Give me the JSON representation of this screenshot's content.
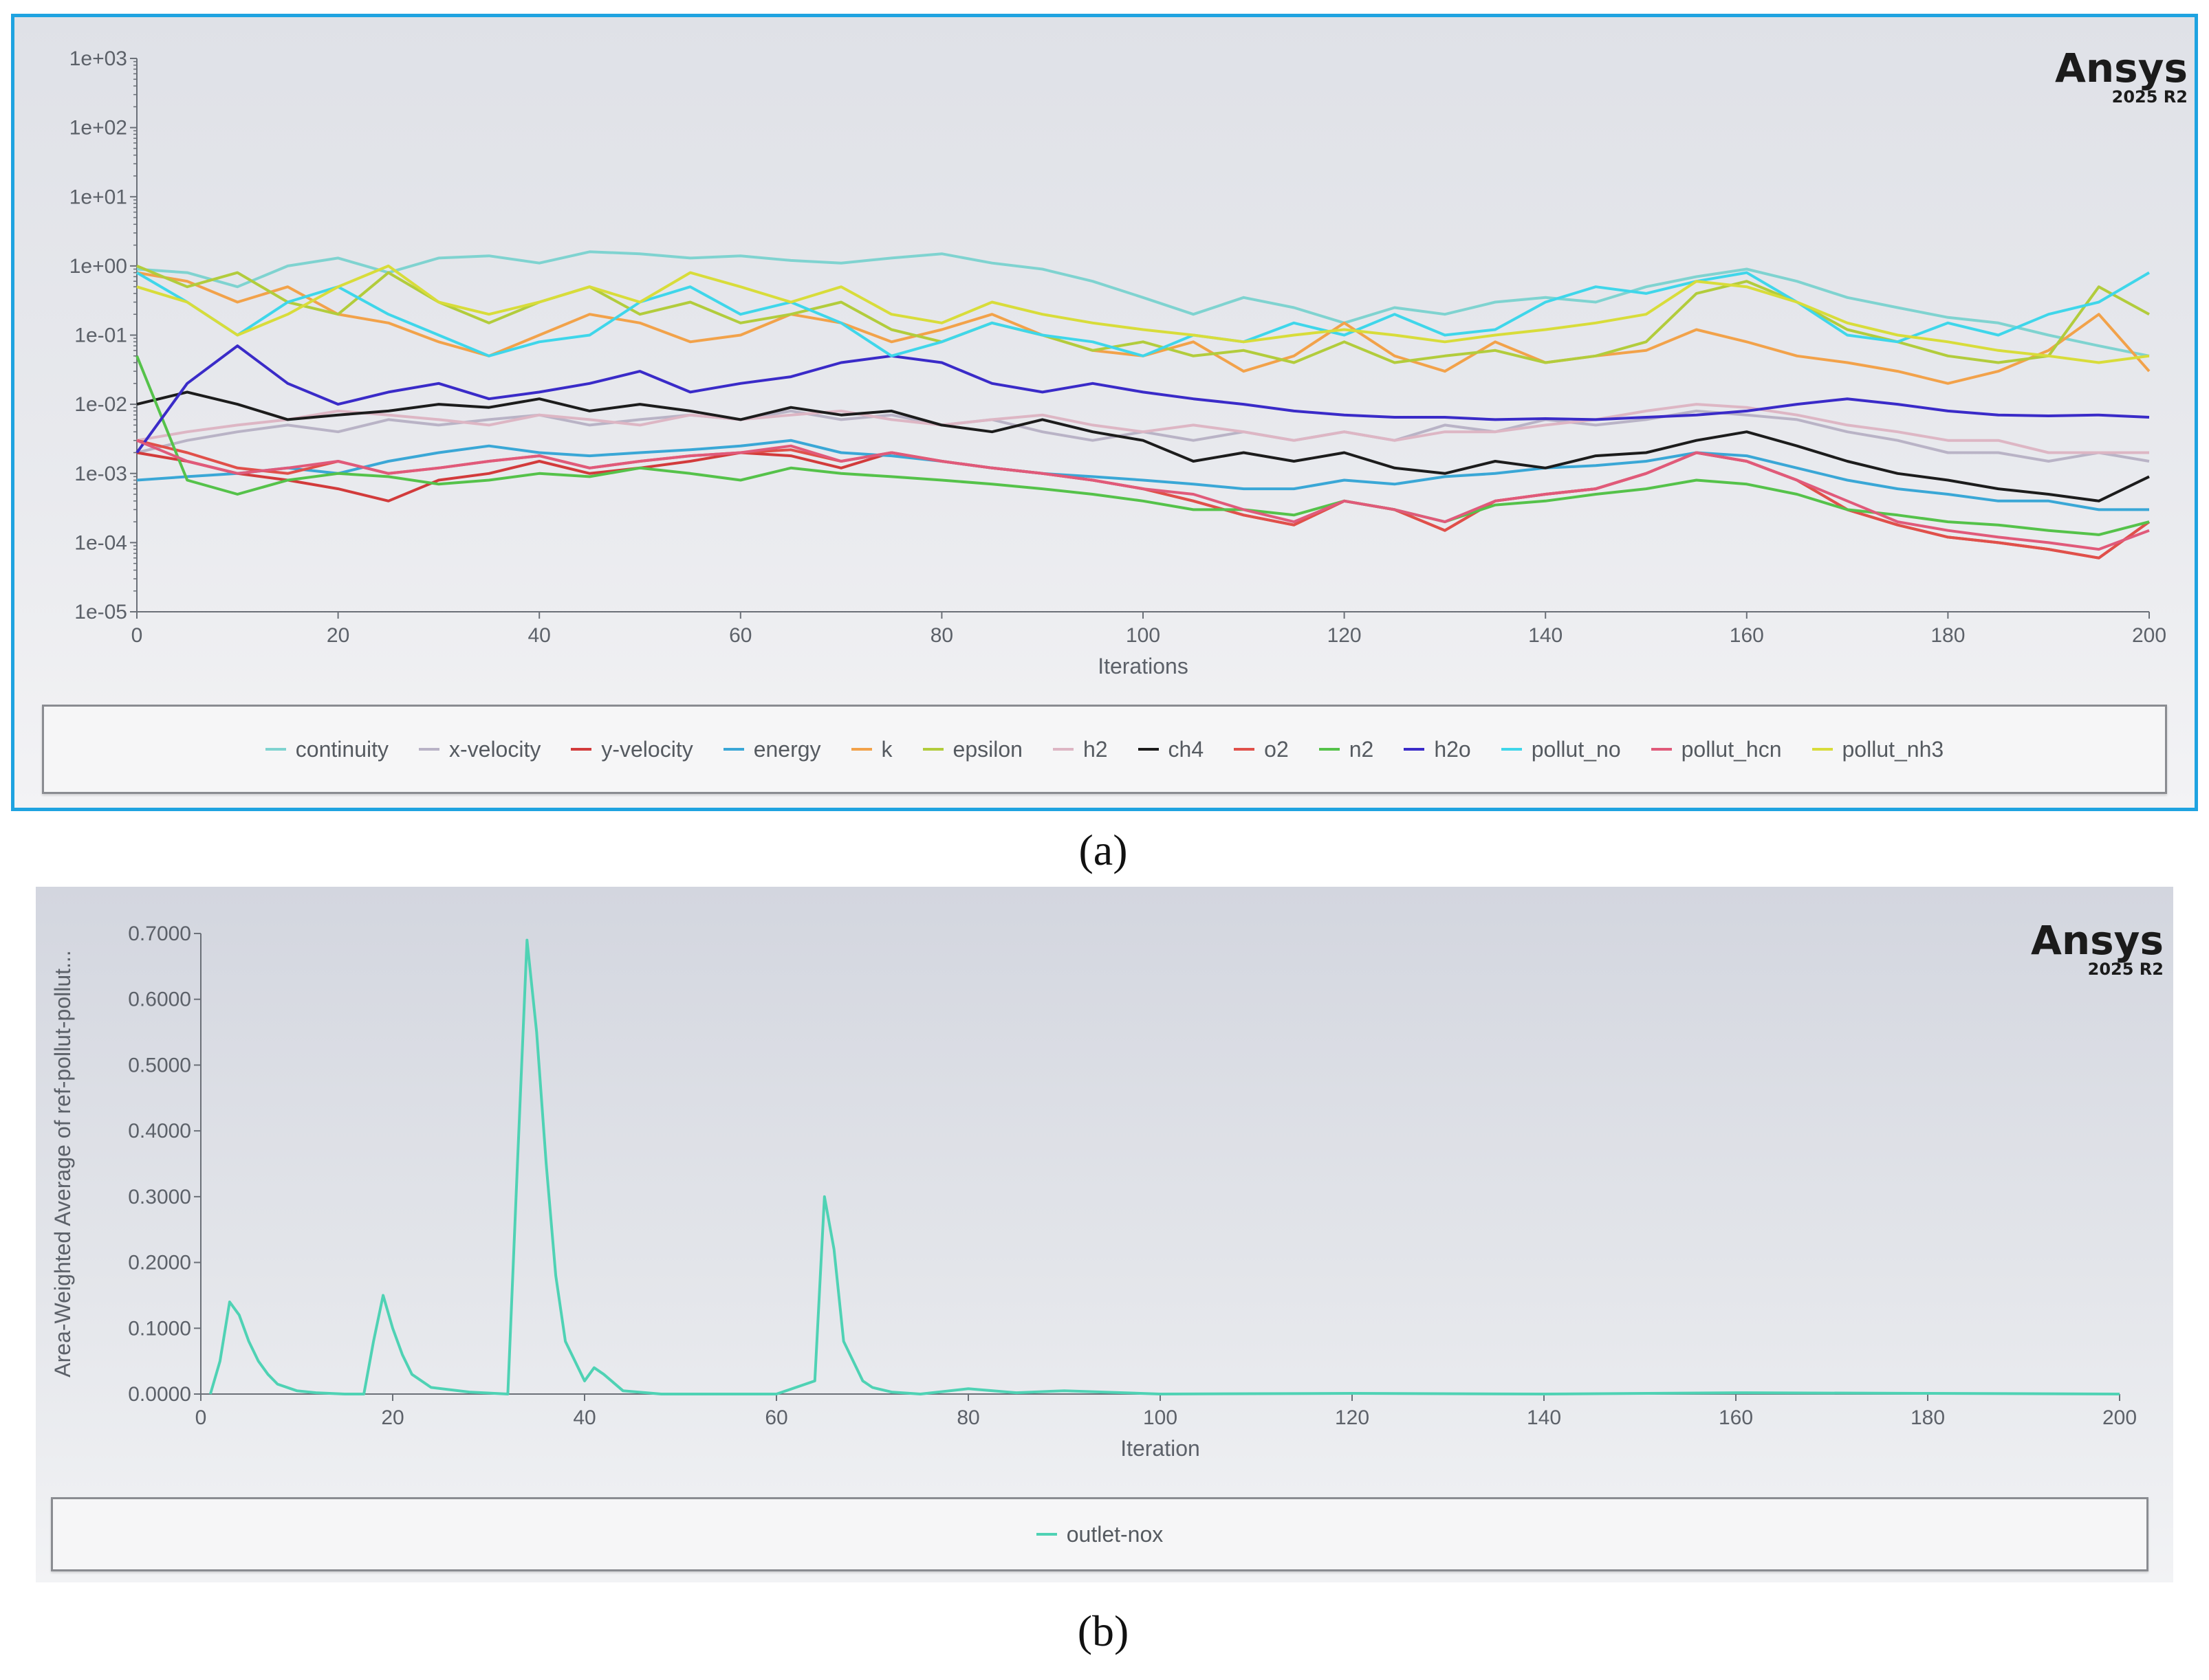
{
  "brand": {
    "name": "Ansys",
    "version": "2025 R2"
  },
  "captions": {
    "a": "(a)",
    "b": "(b)"
  },
  "chart_data": [
    {
      "type": "line",
      "yscale": "log",
      "xlabel": "Iterations",
      "ylabel": "",
      "xlim": [
        0,
        200
      ],
      "ylim": [
        1e-05,
        1000
      ],
      "xticks": [
        "0",
        "20",
        "40",
        "60",
        "80",
        "100",
        "120",
        "140",
        "160",
        "180",
        "200"
      ],
      "yticks": [
        "1e-05",
        "1e-04",
        "1e-03",
        "1e-02",
        "1e-01",
        "1e+00",
        "1e+01",
        "1e+02",
        "1e+03"
      ],
      "legend_position": "bottom",
      "x": [
        0,
        5,
        10,
        15,
        20,
        25,
        30,
        35,
        40,
        45,
        50,
        55,
        60,
        65,
        70,
        75,
        80,
        85,
        90,
        95,
        100,
        105,
        110,
        115,
        120,
        125,
        130,
        135,
        140,
        145,
        150,
        155,
        160,
        165,
        170,
        175,
        180,
        185,
        190,
        195,
        200
      ],
      "series": [
        {
          "name": "continuity",
          "color": "#7fd3d0",
          "values": [
            0.9,
            0.8,
            0.5,
            1.0,
            1.3,
            0.8,
            1.3,
            1.4,
            1.1,
            1.6,
            1.5,
            1.3,
            1.4,
            1.2,
            1.1,
            1.3,
            1.5,
            1.1,
            0.9,
            0.6,
            0.35,
            0.2,
            0.35,
            0.25,
            0.15,
            0.25,
            0.2,
            0.3,
            0.35,
            0.3,
            0.5,
            0.7,
            0.9,
            0.6,
            0.35,
            0.25,
            0.18,
            0.15,
            0.1,
            0.07,
            0.05
          ]
        },
        {
          "name": "x-velocity",
          "color": "#b9b3c6",
          "values": [
            0.002,
            0.003,
            0.004,
            0.005,
            0.004,
            0.006,
            0.005,
            0.006,
            0.007,
            0.005,
            0.006,
            0.007,
            0.006,
            0.008,
            0.006,
            0.007,
            0.005,
            0.006,
            0.004,
            0.003,
            0.004,
            0.003,
            0.004,
            0.003,
            0.004,
            0.003,
            0.005,
            0.004,
            0.006,
            0.005,
            0.006,
            0.008,
            0.007,
            0.006,
            0.004,
            0.003,
            0.002,
            0.002,
            0.0015,
            0.002,
            0.0015
          ]
        },
        {
          "name": "y-velocity",
          "color": "#d23b3b",
          "values": [
            0.002,
            0.0015,
            0.001,
            0.0008,
            0.0006,
            0.0004,
            0.0008,
            0.001,
            0.0015,
            0.001,
            0.0012,
            0.0015,
            0.002,
            0.0018,
            0.0012,
            0.002,
            0.0015,
            0.0012,
            0.001,
            0.0008,
            0.0006,
            0.0004,
            0.00025,
            0.00018,
            0.0004,
            0.0003,
            0.00015,
            0.0004,
            0.0005,
            0.0006,
            0.001,
            0.002,
            0.0015,
            0.0008,
            0.0003,
            0.00018,
            0.00012,
            0.0001,
            8e-05,
            6e-05,
            0.0002
          ]
        },
        {
          "name": "energy",
          "color": "#3aa7d6",
          "values": [
            0.0008,
            0.0009,
            0.001,
            0.0012,
            0.001,
            0.0015,
            0.002,
            0.0025,
            0.002,
            0.0018,
            0.002,
            0.0022,
            0.0025,
            0.003,
            0.002,
            0.0018,
            0.0015,
            0.0012,
            0.001,
            0.0009,
            0.0008,
            0.0007,
            0.0006,
            0.0006,
            0.0008,
            0.0007,
            0.0009,
            0.001,
            0.0012,
            0.0013,
            0.0015,
            0.002,
            0.0018,
            0.0012,
            0.0008,
            0.0006,
            0.0005,
            0.0004,
            0.0004,
            0.0003,
            0.0003
          ]
        },
        {
          "name": "k",
          "color": "#f2a24a",
          "values": [
            0.8,
            0.6,
            0.3,
            0.5,
            0.2,
            0.15,
            0.08,
            0.05,
            0.1,
            0.2,
            0.15,
            0.08,
            0.1,
            0.2,
            0.15,
            0.08,
            0.12,
            0.2,
            0.1,
            0.06,
            0.05,
            0.08,
            0.03,
            0.05,
            0.15,
            0.05,
            0.03,
            0.08,
            0.04,
            0.05,
            0.06,
            0.12,
            0.08,
            0.05,
            0.04,
            0.03,
            0.02,
            0.03,
            0.06,
            0.2,
            0.03
          ]
        },
        {
          "name": "epsilon",
          "color": "#b2cc3c",
          "values": [
            1.0,
            0.5,
            0.8,
            0.3,
            0.2,
            0.8,
            0.3,
            0.15,
            0.3,
            0.5,
            0.2,
            0.3,
            0.15,
            0.2,
            0.3,
            0.12,
            0.08,
            0.15,
            0.1,
            0.06,
            0.08,
            0.05,
            0.06,
            0.04,
            0.08,
            0.04,
            0.05,
            0.06,
            0.04,
            0.05,
            0.08,
            0.4,
            0.6,
            0.3,
            0.12,
            0.08,
            0.05,
            0.04,
            0.05,
            0.5,
            0.2
          ]
        },
        {
          "name": "h2",
          "color": "#ddb6c4",
          "values": [
            0.003,
            0.004,
            0.005,
            0.006,
            0.008,
            0.007,
            0.006,
            0.005,
            0.007,
            0.006,
            0.005,
            0.007,
            0.006,
            0.007,
            0.008,
            0.006,
            0.005,
            0.006,
            0.007,
            0.005,
            0.004,
            0.005,
            0.004,
            0.003,
            0.004,
            0.003,
            0.004,
            0.004,
            0.005,
            0.006,
            0.008,
            0.01,
            0.009,
            0.007,
            0.005,
            0.004,
            0.003,
            0.003,
            0.002,
            0.002,
            0.002
          ]
        },
        {
          "name": "ch4",
          "color": "#1c1c1c",
          "values": [
            0.01,
            0.015,
            0.01,
            0.006,
            0.007,
            0.008,
            0.01,
            0.009,
            0.012,
            0.008,
            0.01,
            0.008,
            0.006,
            0.009,
            0.007,
            0.008,
            0.005,
            0.004,
            0.006,
            0.004,
            0.003,
            0.0015,
            0.002,
            0.0015,
            0.002,
            0.0012,
            0.001,
            0.0015,
            0.0012,
            0.0018,
            0.002,
            0.003,
            0.004,
            0.0025,
            0.0015,
            0.001,
            0.0008,
            0.0006,
            0.0005,
            0.0004,
            0.0009
          ]
        },
        {
          "name": "o2",
          "color": "#e0504a",
          "values": [
            0.003,
            0.002,
            0.0012,
            0.001,
            0.0015,
            0.001,
            0.0012,
            0.0015,
            0.0018,
            0.0012,
            0.0015,
            0.0018,
            0.002,
            0.0022,
            0.0015,
            0.002,
            0.0015,
            0.0012,
            0.001,
            0.0008,
            0.0006,
            0.0004,
            0.00025,
            0.00018,
            0.0004,
            0.0003,
            0.00015,
            0.0004,
            0.0005,
            0.0006,
            0.001,
            0.002,
            0.0015,
            0.0008,
            0.0003,
            0.00018,
            0.00012,
            0.0001,
            8e-05,
            6e-05,
            0.0002
          ]
        },
        {
          "name": "n2",
          "color": "#55c24a",
          "values": [
            0.05,
            0.0008,
            0.0005,
            0.0008,
            0.001,
            0.0009,
            0.0007,
            0.0008,
            0.001,
            0.0009,
            0.0012,
            0.001,
            0.0008,
            0.0012,
            0.001,
            0.0009,
            0.0008,
            0.0007,
            0.0006,
            0.0005,
            0.0004,
            0.0003,
            0.0003,
            0.00025,
            0.0004,
            0.0003,
            0.0002,
            0.00035,
            0.0004,
            0.0005,
            0.0006,
            0.0008,
            0.0007,
            0.0005,
            0.0003,
            0.00025,
            0.0002,
            0.00018,
            0.00015,
            0.00013,
            0.0002
          ]
        },
        {
          "name": "h2o",
          "color": "#3a2bc8",
          "values": [
            0.002,
            0.02,
            0.07,
            0.02,
            0.01,
            0.015,
            0.02,
            0.012,
            0.015,
            0.02,
            0.03,
            0.015,
            0.02,
            0.025,
            0.04,
            0.05,
            0.04,
            0.02,
            0.015,
            0.02,
            0.015,
            0.012,
            0.01,
            0.008,
            0.007,
            0.0065,
            0.0065,
            0.006,
            0.0062,
            0.006,
            0.0065,
            0.007,
            0.008,
            0.01,
            0.012,
            0.01,
            0.008,
            0.007,
            0.0068,
            0.007,
            0.0065
          ]
        },
        {
          "name": "pollut_no",
          "color": "#3fd6ea",
          "values": [
            0.8,
            0.3,
            0.1,
            0.3,
            0.5,
            0.2,
            0.1,
            0.05,
            0.08,
            0.1,
            0.3,
            0.5,
            0.2,
            0.3,
            0.15,
            0.05,
            0.08,
            0.15,
            0.1,
            0.08,
            0.05,
            0.1,
            0.08,
            0.15,
            0.1,
            0.2,
            0.1,
            0.12,
            0.3,
            0.5,
            0.4,
            0.6,
            0.8,
            0.3,
            0.1,
            0.08,
            0.15,
            0.1,
            0.2,
            0.3,
            0.8
          ]
        },
        {
          "name": "pollut_hcn",
          "color": "#e05a7a",
          "values": [
            0.003,
            0.0015,
            0.001,
            0.0012,
            0.0015,
            0.001,
            0.0012,
            0.0015,
            0.0018,
            0.0012,
            0.0015,
            0.0018,
            0.002,
            0.0025,
            0.0015,
            0.002,
            0.0015,
            0.0012,
            0.001,
            0.0008,
            0.0006,
            0.0005,
            0.0003,
            0.0002,
            0.0004,
            0.0003,
            0.0002,
            0.0004,
            0.0005,
            0.0006,
            0.001,
            0.002,
            0.0015,
            0.0008,
            0.0004,
            0.0002,
            0.00015,
            0.00012,
            0.0001,
            8e-05,
            0.00015
          ]
        },
        {
          "name": "pollut_nh3",
          "color": "#d8dc3a",
          "values": [
            0.5,
            0.3,
            0.1,
            0.2,
            0.5,
            1.0,
            0.3,
            0.2,
            0.3,
            0.5,
            0.3,
            0.8,
            0.5,
            0.3,
            0.5,
            0.2,
            0.15,
            0.3,
            0.2,
            0.15,
            0.12,
            0.1,
            0.08,
            0.1,
            0.12,
            0.1,
            0.08,
            0.1,
            0.12,
            0.15,
            0.2,
            0.6,
            0.5,
            0.3,
            0.15,
            0.1,
            0.08,
            0.06,
            0.05,
            0.04,
            0.05
          ]
        }
      ]
    },
    {
      "type": "line",
      "xlabel": "Iteration",
      "ylabel": "Area-Weighted Average of ref-pollut-pollut...",
      "xlim": [
        0,
        200
      ],
      "ylim": [
        0,
        0.7
      ],
      "xticks": [
        "0",
        "20",
        "40",
        "60",
        "80",
        "100",
        "120",
        "140",
        "160",
        "180",
        "200"
      ],
      "yticks": [
        "0.0000",
        "0.1000",
        "0.2000",
        "0.3000",
        "0.4000",
        "0.5000",
        "0.6000",
        "0.7000"
      ],
      "legend_position": "bottom",
      "series": [
        {
          "name": "outlet-nox",
          "color": "#4fd2b4",
          "x": [
            1,
            2,
            3,
            4,
            5,
            6,
            7,
            8,
            10,
            12,
            15,
            17,
            18,
            19,
            20,
            21,
            22,
            24,
            28,
            32,
            33,
            34,
            35,
            36,
            37,
            38,
            40,
            41,
            42,
            44,
            48,
            55,
            60,
            64,
            65,
            66,
            67,
            68,
            69,
            70,
            72,
            75,
            80,
            85,
            90,
            100,
            120,
            140,
            160,
            180,
            200
          ],
          "y": [
            0,
            0.05,
            0.14,
            0.12,
            0.08,
            0.05,
            0.03,
            0.015,
            0.005,
            0.002,
            0,
            0,
            0.08,
            0.15,
            0.1,
            0.06,
            0.03,
            0.01,
            0.003,
            0,
            0.35,
            0.69,
            0.55,
            0.35,
            0.18,
            0.08,
            0.02,
            0.04,
            0.03,
            0.005,
            0,
            0,
            0,
            0.02,
            0.3,
            0.22,
            0.08,
            0.05,
            0.02,
            0.01,
            0.003,
            0,
            0.008,
            0.002,
            0.005,
            0,
            0.001,
            0,
            0.002,
            0.001,
            0
          ]
        }
      ]
    }
  ]
}
